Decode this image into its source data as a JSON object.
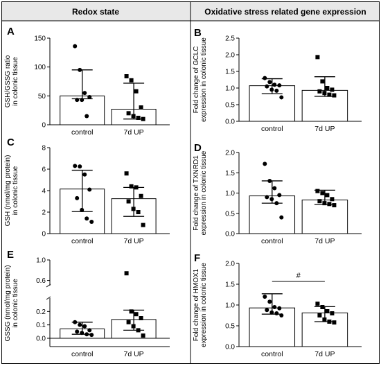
{
  "header": {
    "left_title": "Redox state",
    "right_title": "Oxidative stress related gene expression"
  },
  "chart_data": [
    {
      "panel": "A",
      "type": "bar",
      "categories": [
        "control",
        "7d UP"
      ],
      "ylabel": [
        "GSH/GSSG ratio",
        "in colonic tissue"
      ],
      "ylim": [
        0,
        150
      ],
      "yticks": [
        0,
        50,
        100,
        150
      ],
      "means": [
        50,
        27
      ],
      "error_low": [
        45,
        10
      ],
      "error_high": [
        95,
        72
      ],
      "points": [
        [
          136,
          95,
          55,
          48,
          43,
          43,
          15
        ],
        [
          84,
          77,
          58,
          30,
          20,
          15,
          12,
          10
        ]
      ]
    },
    {
      "panel": "B",
      "type": "bar",
      "categories": [
        "control",
        "7d UP"
      ],
      "ylabel": [
        "Fold change of GCLC",
        "expression in colonic tissue"
      ],
      "ylim": [
        0,
        2.5
      ],
      "yticks": [
        "0.0",
        "0.5",
        "1.0",
        "1.5",
        "2.0",
        "2.5"
      ],
      "means": [
        1.07,
        0.93
      ],
      "error_low": [
        0.83,
        0.75
      ],
      "error_high": [
        1.28,
        1.34
      ],
      "points": [
        [
          1.3,
          1.18,
          1.1,
          1.08,
          1.05,
          0.95,
          0.92,
          0.72
        ],
        [
          1.93,
          1.2,
          1.0,
          0.95,
          0.9,
          0.85,
          0.8,
          0.78
        ]
      ]
    },
    {
      "panel": "C",
      "type": "bar",
      "categories": [
        "control",
        "7d UP"
      ],
      "ylabel": [
        "GSH (nmol/mg protein)",
        "in colonic tissue"
      ],
      "ylim": [
        0,
        8
      ],
      "yticks": [
        0,
        2,
        4,
        6,
        8
      ],
      "means": [
        4.15,
        3.25
      ],
      "error_low": [
        2.05,
        1.6
      ],
      "error_high": [
        5.9,
        4.3
      ],
      "points": [
        [
          6.3,
          6.25,
          5.5,
          4.1,
          3.3,
          2.2,
          1.4,
          1.1
        ],
        [
          5.6,
          4.4,
          4.3,
          3.5,
          3.0,
          2.3,
          2.0,
          0.8
        ]
      ]
    },
    {
      "panel": "D",
      "type": "bar",
      "categories": [
        "control",
        "7d UP"
      ],
      "ylabel": [
        "Fold change of TXNRD1",
        "expression in colonic tissue"
      ],
      "ylim": [
        0,
        2.0
      ],
      "yticks": [
        "0.0",
        "0.5",
        "1.0",
        "1.5",
        "2.0"
      ],
      "means": [
        0.93,
        0.83
      ],
      "error_low": [
        0.75,
        0.72
      ],
      "error_high": [
        1.3,
        1.07
      ],
      "points": [
        [
          1.72,
          1.3,
          1.12,
          0.95,
          0.9,
          0.85,
          0.75,
          0.4
        ],
        [
          1.05,
          1.0,
          0.95,
          0.85,
          0.8,
          0.75,
          0.73,
          0.7
        ]
      ]
    },
    {
      "panel": "E",
      "type": "bar",
      "categories": [
        "control",
        "7d UP"
      ],
      "ylabel": [
        "GSSG (nmol/mg protein)",
        "in colonic tissue"
      ],
      "ylim": [
        0,
        1.0
      ],
      "yticks": [
        "0.0",
        "0.1",
        "0.2",
        "0.6",
        "1.0"
      ],
      "axis_break": [
        0.3,
        0.5
      ],
      "means": [
        0.07,
        0.14
      ],
      "error_low": [
        0.03,
        0.06
      ],
      "error_high": [
        0.12,
        0.21
      ],
      "points": [
        [
          0.12,
          0.1,
          0.09,
          0.06,
          0.05,
          0.04,
          0.03,
          0.025
        ],
        [
          0.74,
          0.2,
          0.18,
          0.15,
          0.12,
          0.09,
          0.06,
          0.02
        ]
      ]
    },
    {
      "panel": "F",
      "type": "bar",
      "categories": [
        "control",
        "7d UP"
      ],
      "ylabel": [
        "Fold change of HMOX1",
        "expression in colonic tissue"
      ],
      "ylim": [
        0,
        2.0
      ],
      "yticks": [
        "0.0",
        "0.5",
        "1.0",
        "1.5",
        "2.0"
      ],
      "means": [
        0.93,
        0.81
      ],
      "error_low": [
        0.78,
        0.6
      ],
      "error_high": [
        1.27,
        0.96
      ],
      "points": [
        [
          1.2,
          1.08,
          0.95,
          0.92,
          0.88,
          0.82,
          0.8,
          0.75
        ],
        [
          1.03,
          0.95,
          0.85,
          0.8,
          0.75,
          0.65,
          0.6,
          0.58
        ]
      ],
      "annotation": "#"
    }
  ]
}
